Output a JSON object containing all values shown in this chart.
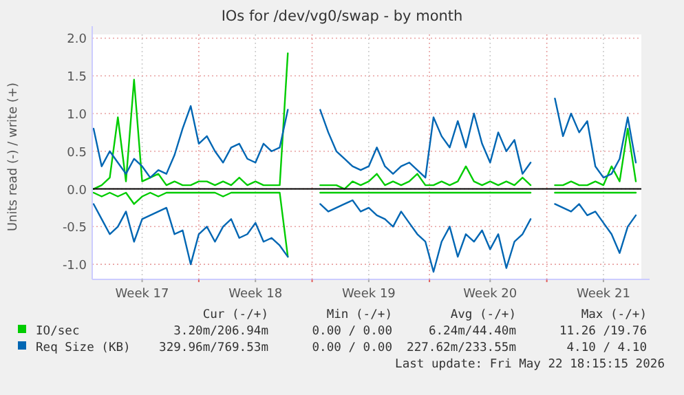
{
  "chart_data": {
    "type": "line",
    "title": "IOs for /dev/vg0/swap - by month",
    "ylabel": "Units read (-) / write (+)",
    "categories": [
      null,
      null,
      null,
      null,
      null,
      null,
      "Week 17",
      null,
      null,
      null,
      null,
      null,
      null,
      null,
      null,
      null,
      null,
      null,
      null,
      null,
      "Week 18",
      null,
      null,
      null,
      null,
      null,
      null,
      null,
      null,
      null,
      null,
      null,
      null,
      null,
      "Week 19",
      null,
      null,
      null,
      null,
      null,
      null,
      null,
      null,
      null,
      null,
      null,
      null,
      null,
      null,
      "Week 20",
      null,
      null,
      null,
      null,
      null,
      null,
      null,
      null,
      null,
      null,
      null,
      null,
      null,
      "Week 21",
      null,
      null,
      null,
      null
    ],
    "series": [
      {
        "name": "IO/sec",
        "color": "#00cc00",
        "values": [
          0.0,
          0.05,
          0.15,
          0.95,
          0.1,
          1.45,
          0.1,
          0.15,
          0.2,
          0.05,
          0.1,
          0.05,
          0.05,
          0.1,
          0.1,
          0.05,
          0.1,
          0.05,
          0.15,
          0.05,
          0.1,
          0.05,
          0.05,
          0.05,
          1.8,
          null,
          null,
          null,
          0.05,
          0.05,
          0.05,
          0.0,
          0.1,
          0.05,
          0.1,
          0.2,
          0.05,
          0.1,
          0.05,
          0.1,
          0.2,
          0.05,
          0.05,
          0.1,
          0.05,
          0.1,
          0.3,
          0.1,
          0.05,
          0.1,
          0.05,
          0.1,
          0.05,
          0.15,
          0.05,
          null,
          null,
          0.05,
          0.05,
          0.1,
          0.05,
          0.05,
          0.1,
          0.05,
          0.3,
          0.1,
          0.8,
          0.1
        ]
      },
      {
        "color": "#00cc00",
        "values": [
          -0.05,
          -0.1,
          -0.05,
          -0.1,
          -0.05,
          -0.2,
          -0.1,
          -0.05,
          -0.1,
          -0.05,
          -0.05,
          -0.05,
          -0.05,
          -0.05,
          -0.05,
          -0.05,
          -0.1,
          -0.05,
          -0.05,
          -0.05,
          -0.05,
          -0.05,
          -0.05,
          -0.05,
          -0.9,
          null,
          null,
          null,
          -0.05,
          -0.05,
          -0.05,
          -0.05,
          -0.05,
          -0.05,
          -0.05,
          -0.05,
          -0.05,
          -0.05,
          -0.05,
          -0.05,
          -0.05,
          -0.05,
          -0.05,
          -0.05,
          -0.05,
          -0.05,
          -0.05,
          -0.05,
          -0.05,
          -0.05,
          -0.05,
          -0.05,
          -0.05,
          -0.05,
          -0.05,
          null,
          null,
          -0.05,
          -0.05,
          -0.05,
          -0.05,
          -0.05,
          -0.05,
          -0.05,
          -0.05,
          -0.05,
          -0.05,
          -0.05
        ]
      },
      {
        "name": "Req Size (KB)",
        "color": "#0066b3",
        "values": [
          0.8,
          0.3,
          0.5,
          0.35,
          0.2,
          0.4,
          0.3,
          0.15,
          0.25,
          0.2,
          0.45,
          0.8,
          1.1,
          0.6,
          0.7,
          0.5,
          0.35,
          0.55,
          0.6,
          0.4,
          0.35,
          0.6,
          0.5,
          0.55,
          1.05,
          null,
          null,
          null,
          1.05,
          0.75,
          0.5,
          0.4,
          0.3,
          0.25,
          0.3,
          0.55,
          0.3,
          0.2,
          0.3,
          0.35,
          0.25,
          0.15,
          0.95,
          0.7,
          0.55,
          0.9,
          0.55,
          1.0,
          0.6,
          0.35,
          0.75,
          0.5,
          0.65,
          0.2,
          0.35,
          null,
          null,
          1.2,
          0.7,
          1.0,
          0.75,
          0.9,
          0.3,
          0.15,
          0.2,
          0.4,
          0.95,
          0.35
        ]
      },
      {
        "color": "#0066b3",
        "values": [
          -0.2,
          -0.4,
          -0.6,
          -0.5,
          -0.3,
          -0.7,
          -0.4,
          -0.35,
          -0.3,
          -0.25,
          -0.6,
          -0.55,
          -1.0,
          -0.6,
          -0.5,
          -0.7,
          -0.5,
          -0.4,
          -0.65,
          -0.6,
          -0.45,
          -0.7,
          -0.65,
          -0.75,
          -0.9,
          null,
          null,
          null,
          -0.2,
          -0.3,
          -0.25,
          -0.2,
          -0.15,
          -0.3,
          -0.25,
          -0.35,
          -0.4,
          -0.5,
          -0.3,
          -0.45,
          -0.6,
          -0.7,
          -1.1,
          -0.7,
          -0.5,
          -0.9,
          -0.6,
          -0.7,
          -0.55,
          -0.8,
          -0.6,
          -1.05,
          -0.7,
          -0.6,
          -0.4,
          null,
          null,
          -0.2,
          -0.25,
          -0.3,
          -0.2,
          -0.35,
          -0.3,
          -0.45,
          -0.6,
          -0.85,
          -0.5,
          -0.35
        ]
      }
    ],
    "ylim": [
      -1.2,
      2.05
    ],
    "yticks": [
      {
        "value": -1,
        "label": "-1.0"
      },
      -0.5,
      {
        "value": 0,
        "label": "0.0"
      },
      0.5,
      {
        "value": 1,
        "label": "1.0"
      },
      1.5,
      {
        "value": 2,
        "label": "2.0"
      }
    ],
    "grid": true,
    "ref_lines": [
      {
        "axis": "y",
        "value": 0,
        "color": "#000000"
      }
    ],
    "legend": "bottom",
    "annotations": [
      "Cur (-/+)",
      "Min (-/+)",
      "Avg (-/+)",
      "Max (-/+)",
      "3.20m/206.94m",
      "0.00 / 0.00",
      "6.24m/44.40m",
      "11.26 /19.76",
      "329.96m/769.53m",
      "0.00 / 0.00",
      "227.62m/233.55m",
      "4.10 / 4.10",
      "Last update: Fri May 22 18:15:15 2026"
    ]
  }
}
